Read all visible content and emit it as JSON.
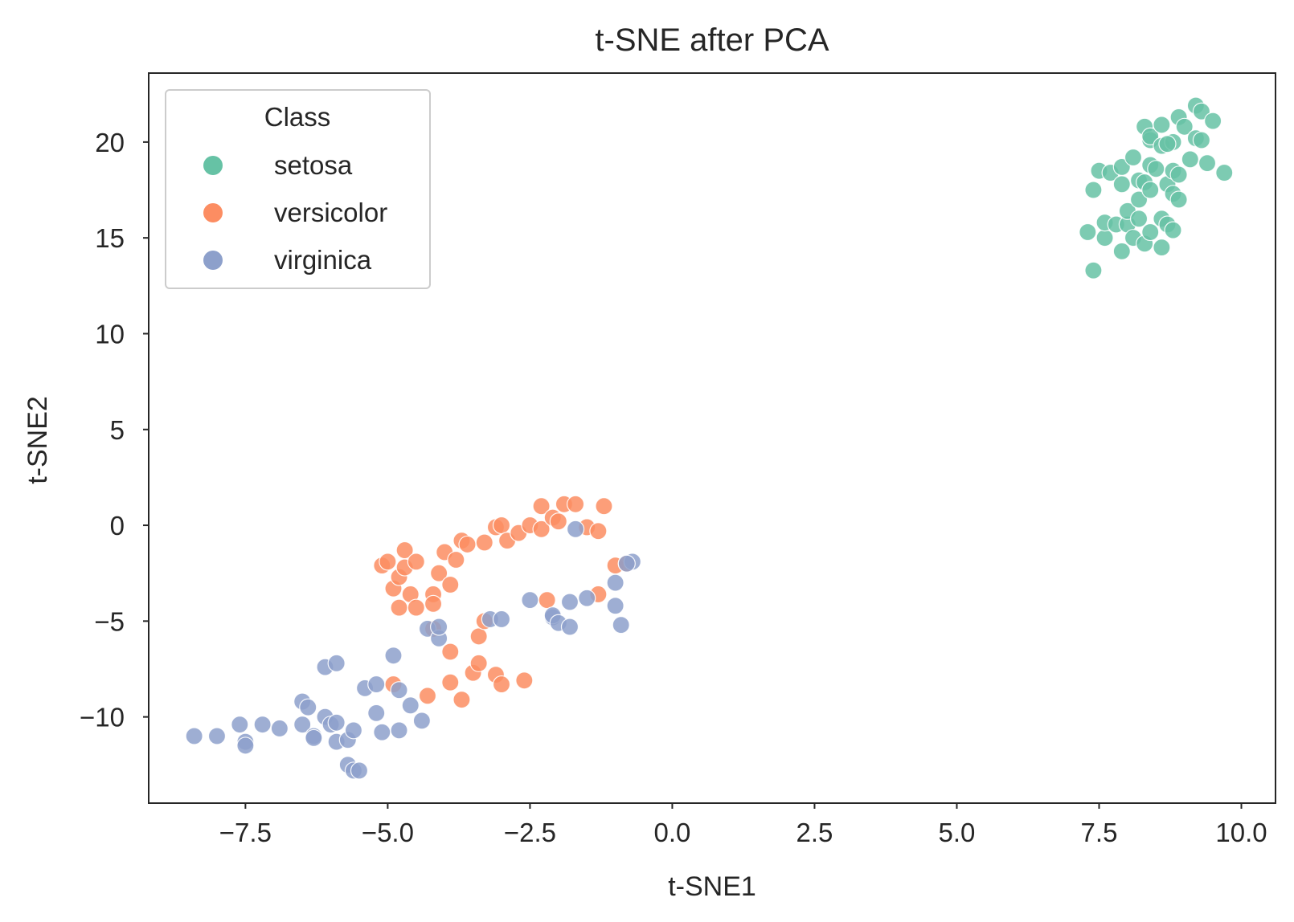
{
  "chart_data": {
    "type": "scatter",
    "title": "t-SNE after PCA",
    "xlabel": "t-SNE1",
    "ylabel": "t-SNE2",
    "xlim": [
      -9.2,
      10.6
    ],
    "ylim": [
      -14.5,
      23.6
    ],
    "xticks": [
      -7.5,
      -5.0,
      -2.5,
      0.0,
      2.5,
      5.0,
      7.5,
      10.0
    ],
    "xtick_labels": [
      "−7.5",
      "−5.0",
      "−2.5",
      "0.0",
      "2.5",
      "5.0",
      "7.5",
      "10.0"
    ],
    "yticks": [
      -10,
      -5,
      0,
      5,
      10,
      15,
      20
    ],
    "ytick_labels": [
      "−10",
      "−5",
      "0",
      "5",
      "10",
      "15",
      "20"
    ],
    "grid": false,
    "legend": {
      "title": "Class",
      "placement": "top-left"
    },
    "series": [
      {
        "name": "setosa",
        "color": "#66c2a5",
        "points": [
          [
            7.3,
            15.3
          ],
          [
            7.4,
            13.3
          ],
          [
            7.4,
            17.5
          ],
          [
            7.5,
            18.5
          ],
          [
            7.6,
            15.0
          ],
          [
            7.6,
            15.8
          ],
          [
            7.7,
            18.4
          ],
          [
            7.8,
            15.7
          ],
          [
            7.9,
            18.7
          ],
          [
            7.9,
            17.8
          ],
          [
            7.9,
            14.3
          ],
          [
            8.0,
            15.7
          ],
          [
            8.0,
            16.4
          ],
          [
            8.1,
            19.2
          ],
          [
            8.1,
            15.0
          ],
          [
            8.2,
            18.0
          ],
          [
            8.2,
            17.0
          ],
          [
            8.2,
            16.0
          ],
          [
            8.3,
            20.8
          ],
          [
            8.3,
            17.9
          ],
          [
            8.3,
            14.7
          ],
          [
            8.4,
            20.1
          ],
          [
            8.4,
            18.8
          ],
          [
            8.4,
            17.5
          ],
          [
            8.4,
            15.3
          ],
          [
            8.4,
            20.3
          ],
          [
            8.5,
            18.6
          ],
          [
            8.6,
            19.8
          ],
          [
            8.6,
            16.0
          ],
          [
            8.6,
            14.5
          ],
          [
            8.6,
            20.9
          ],
          [
            8.7,
            17.8
          ],
          [
            8.7,
            15.7
          ],
          [
            8.8,
            20.0
          ],
          [
            8.8,
            17.3
          ],
          [
            8.8,
            18.5
          ],
          [
            8.8,
            15.4
          ],
          [
            8.9,
            21.3
          ],
          [
            8.9,
            18.3
          ],
          [
            8.9,
            17.0
          ],
          [
            9.0,
            20.8
          ],
          [
            9.1,
            19.1
          ],
          [
            9.2,
            20.2
          ],
          [
            9.2,
            21.9
          ],
          [
            9.3,
            21.6
          ],
          [
            9.3,
            20.1
          ],
          [
            9.4,
            18.9
          ],
          [
            9.5,
            21.1
          ],
          [
            9.7,
            18.4
          ],
          [
            8.7,
            19.9
          ]
        ]
      },
      {
        "name": "versicolor",
        "color": "#fc8d62",
        "points": [
          [
            -5.1,
            -2.1
          ],
          [
            -5.0,
            -1.9
          ],
          [
            -4.9,
            -3.3
          ],
          [
            -4.9,
            -8.3
          ],
          [
            -4.8,
            -2.7
          ],
          [
            -4.8,
            -4.3
          ],
          [
            -4.7,
            -2.2
          ],
          [
            -4.7,
            -1.3
          ],
          [
            -4.6,
            -3.6
          ],
          [
            -4.5,
            -1.9
          ],
          [
            -4.5,
            -4.3
          ],
          [
            -4.3,
            -8.9
          ],
          [
            -4.2,
            -3.6
          ],
          [
            -4.2,
            -5.4
          ],
          [
            -4.2,
            -4.1
          ],
          [
            -4.1,
            -2.5
          ],
          [
            -4.0,
            -1.4
          ],
          [
            -3.9,
            -3.1
          ],
          [
            -3.9,
            -6.6
          ],
          [
            -3.9,
            -8.2
          ],
          [
            -3.8,
            -1.8
          ],
          [
            -3.7,
            -9.1
          ],
          [
            -3.7,
            -0.8
          ],
          [
            -3.6,
            -1.0
          ],
          [
            -3.5,
            -7.7
          ],
          [
            -3.4,
            -7.2
          ],
          [
            -3.4,
            -5.8
          ],
          [
            -3.3,
            -5.0
          ],
          [
            -3.3,
            -0.9
          ],
          [
            -3.1,
            -7.8
          ],
          [
            -3.1,
            -0.1
          ],
          [
            -3.0,
            0.0
          ],
          [
            -3.0,
            -8.3
          ],
          [
            -2.9,
            -0.8
          ],
          [
            -2.7,
            -0.4
          ],
          [
            -2.6,
            -8.1
          ],
          [
            -2.5,
            0.0
          ],
          [
            -2.3,
            1.0
          ],
          [
            -2.3,
            -0.2
          ],
          [
            -2.2,
            -3.9
          ],
          [
            -2.1,
            0.4
          ],
          [
            -2.0,
            0.2
          ],
          [
            -1.9,
            1.1
          ],
          [
            -1.7,
            1.1
          ],
          [
            -1.5,
            -0.1
          ],
          [
            -1.3,
            -0.3
          ],
          [
            -1.3,
            -3.6
          ],
          [
            -1.2,
            1.0
          ],
          [
            -1.0,
            -2.1
          ],
          [
            -0.8,
            -2.0
          ]
        ]
      },
      {
        "name": "virginica",
        "color": "#8da0cb",
        "points": [
          [
            -8.4,
            -11.0
          ],
          [
            -8.0,
            -11.0
          ],
          [
            -7.6,
            -10.4
          ],
          [
            -7.5,
            -11.3
          ],
          [
            -7.5,
            -11.5
          ],
          [
            -7.2,
            -10.4
          ],
          [
            -6.9,
            -10.6
          ],
          [
            -6.5,
            -10.4
          ],
          [
            -6.5,
            -9.2
          ],
          [
            -6.4,
            -9.5
          ],
          [
            -6.3,
            -11.0
          ],
          [
            -6.3,
            -11.1
          ],
          [
            -6.1,
            -7.4
          ],
          [
            -6.1,
            -10.0
          ],
          [
            -6.0,
            -10.4
          ],
          [
            -5.9,
            -7.2
          ],
          [
            -5.9,
            -10.3
          ],
          [
            -5.9,
            -11.3
          ],
          [
            -5.7,
            -11.2
          ],
          [
            -5.7,
            -12.5
          ],
          [
            -5.6,
            -12.8
          ],
          [
            -5.6,
            -10.7
          ],
          [
            -5.5,
            -12.8
          ],
          [
            -5.4,
            -8.5
          ],
          [
            -5.2,
            -8.3
          ],
          [
            -5.2,
            -9.8
          ],
          [
            -5.1,
            -10.8
          ],
          [
            -4.9,
            -6.8
          ],
          [
            -4.8,
            -8.6
          ],
          [
            -4.8,
            -10.7
          ],
          [
            -4.6,
            -9.4
          ],
          [
            -4.4,
            -10.2
          ],
          [
            -4.3,
            -5.4
          ],
          [
            -4.1,
            -5.9
          ],
          [
            -4.1,
            -5.3
          ],
          [
            -3.2,
            -4.9
          ],
          [
            -3.0,
            -4.9
          ],
          [
            -2.5,
            -3.9
          ],
          [
            -2.1,
            -4.8
          ],
          [
            -2.1,
            -4.7
          ],
          [
            -2.0,
            -5.1
          ],
          [
            -1.8,
            -4.0
          ],
          [
            -1.8,
            -5.3
          ],
          [
            -1.7,
            -0.2
          ],
          [
            -1.5,
            -3.8
          ],
          [
            -1.0,
            -4.2
          ],
          [
            -1.0,
            -3.0
          ],
          [
            -0.9,
            -5.2
          ],
          [
            -0.7,
            -1.9
          ],
          [
            -0.8,
            -2.0
          ]
        ]
      }
    ]
  }
}
